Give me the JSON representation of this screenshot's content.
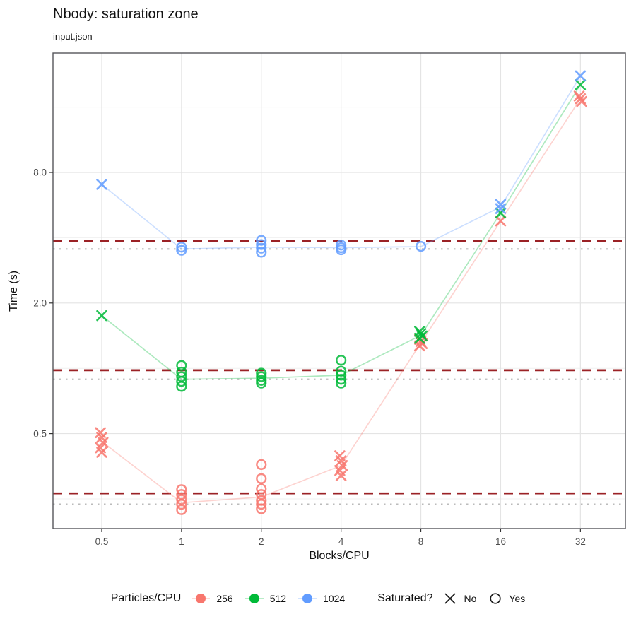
{
  "chart_data": {
    "type": "scatter",
    "title": "Nbody: saturation zone",
    "subtitle": "input.json",
    "xlabel": "Blocks/CPU",
    "ylabel": "Time (s)",
    "x_scale": "log",
    "y_scale": "log",
    "grid": "on",
    "x_ticks": {
      "values": [
        0.5,
        1,
        2,
        4,
        8,
        16,
        32
      ],
      "labels": [
        "0.5",
        "1",
        "2",
        "4",
        "8",
        "16",
        "32"
      ]
    },
    "y_ticks": {
      "values": [
        0.5,
        2,
        8
      ],
      "labels": [
        "0.5",
        "2.0",
        "8.0"
      ]
    },
    "y_minor_gridlines": [
      0.25,
      1,
      4,
      16
    ],
    "x_range": [
      0.3274,
      47.3
    ],
    "y_range": [
      0.1824,
      28.43
    ],
    "threshold_lines": {
      "style": "dashed",
      "color": "#9B2226",
      "values": [
        0.265,
        0.98,
        3.87
      ]
    },
    "baseline_lines": {
      "style": "dotted",
      "color": "#BBBBBB",
      "values": [
        0.236,
        0.89,
        3.55
      ]
    },
    "series": [
      {
        "name": "256",
        "color": "#F8766D",
        "clusters": [
          {
            "x": 0.5,
            "saturated": "No",
            "shape": "x",
            "times": [
              0.505,
              0.48,
              0.455,
              0.43,
              0.41
            ]
          },
          {
            "x": 1,
            "saturated": "Yes",
            "shape": "circle",
            "times": [
              0.276,
              0.262,
              0.248,
              0.236,
              0.223
            ]
          },
          {
            "x": 2,
            "saturated": "Yes",
            "shape": "circle",
            "times": [
              0.36,
              0.31,
              0.278,
              0.262,
              0.246,
              0.236,
              0.225
            ]
          },
          {
            "x": 4,
            "saturated": "No",
            "shape": "x",
            "times": [
              0.395,
              0.375,
              0.356,
              0.338,
              0.32
            ]
          },
          {
            "x": 8,
            "saturated": "No",
            "shape": "x",
            "times": [
              1.36,
              1.33,
              1.3,
              1.27
            ]
          },
          {
            "x": 16,
            "saturated": "No",
            "shape": "x",
            "times": [
              4.78
            ]
          },
          {
            "x": 32,
            "saturated": "No",
            "shape": "x",
            "times": [
              18.0,
              17.5,
              17.0
            ]
          }
        ],
        "trend": [
          0.46,
          0.24,
          0.255,
          0.356,
          1.31,
          4.78,
          17.5
        ]
      },
      {
        "name": "512",
        "color": "#00BA38",
        "clusters": [
          {
            "x": 0.5,
            "saturated": "No",
            "shape": "x",
            "times": [
              1.75
            ]
          },
          {
            "x": 1,
            "saturated": "Yes",
            "shape": "circle",
            "times": [
              1.03,
              0.96,
              0.915,
              0.87,
              0.825
            ]
          },
          {
            "x": 2,
            "saturated": "Yes",
            "shape": "circle",
            "times": [
              0.95,
              0.915,
              0.88,
              0.855
            ]
          },
          {
            "x": 4,
            "saturated": "Yes",
            "shape": "circle",
            "times": [
              1.09,
              0.97,
              0.93,
              0.89,
              0.855
            ]
          },
          {
            "x": 8,
            "saturated": "No",
            "shape": "x",
            "times": [
              1.48,
              1.445,
              1.41,
              1.375
            ]
          },
          {
            "x": 16,
            "saturated": "No",
            "shape": "x",
            "times": [
              5.2
            ]
          },
          {
            "x": 32,
            "saturated": "No",
            "shape": "x",
            "times": [
              20.3
            ]
          }
        ],
        "trend": [
          1.75,
          0.89,
          0.9,
          0.93,
          1.42,
          5.2,
          20.3
        ]
      },
      {
        "name": "1024",
        "color": "#619CFF",
        "clusters": [
          {
            "x": 0.5,
            "saturated": "No",
            "shape": "x",
            "times": [
              7.05
            ]
          },
          {
            "x": 1,
            "saturated": "Yes",
            "shape": "circle",
            "times": [
              3.62,
              3.5
            ]
          },
          {
            "x": 2,
            "saturated": "Yes",
            "shape": "circle",
            "times": [
              3.89,
              3.72,
              3.58,
              3.43
            ]
          },
          {
            "x": 4,
            "saturated": "Yes",
            "shape": "circle",
            "times": [
              3.7,
              3.6,
              3.52
            ]
          },
          {
            "x": 8,
            "saturated": "Yes",
            "shape": "circle",
            "times": [
              3.65
            ]
          },
          {
            "x": 16,
            "saturated": "No",
            "shape": "x",
            "times": [
              5.7,
              5.45
            ]
          },
          {
            "x": 32,
            "saturated": "No",
            "shape": "x",
            "times": [
              22.3
            ]
          }
        ],
        "trend": [
          7.05,
          3.55,
          3.62,
          3.6,
          3.64,
          5.55,
          22.3
        ]
      }
    ],
    "legend": {
      "color": {
        "title": "Particles/CPU",
        "items": [
          {
            "label": "256",
            "color": "#F8766D"
          },
          {
            "label": "512",
            "color": "#00BA38"
          },
          {
            "label": "1024",
            "color": "#619CFF"
          }
        ]
      },
      "shape": {
        "title": "Saturated?",
        "items": [
          {
            "label": "No",
            "shape": "x"
          },
          {
            "label": "Yes",
            "shape": "circle"
          }
        ]
      }
    },
    "style": {
      "grid_major": "#E4E4E4",
      "grid_minor": "#F0F0F0",
      "panel_border": "#55565A",
      "axis_tick_color": "#333333",
      "tick_label_color": "#4D4D4D",
      "trend_opacity": 0.32,
      "point_opacity": 0.85
    }
  }
}
